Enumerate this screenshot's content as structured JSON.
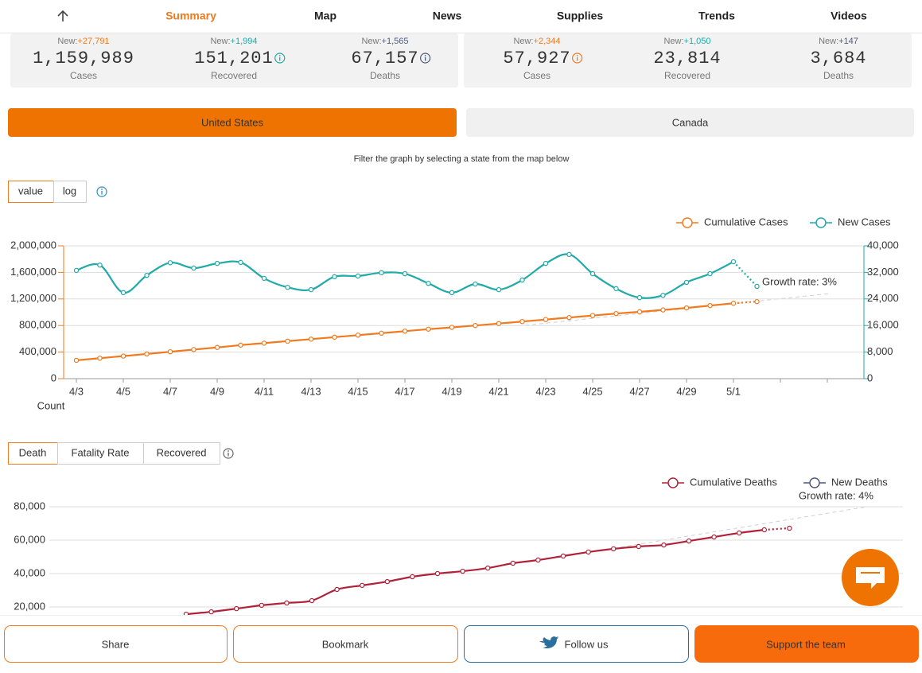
{
  "nav": {
    "items": [
      "Summary",
      "Map",
      "News",
      "Supplies",
      "Trends",
      "Videos"
    ],
    "active": 0
  },
  "new_prefix": "New:",
  "stats": [
    {
      "new": "+27,791",
      "value": "1,159,989",
      "label": "Cases",
      "color": "#f07a1f"
    },
    {
      "new": "+1,994",
      "value": "151,201",
      "label": "Recovered",
      "color": "#20aaa8"
    },
    {
      "new": "+1,565",
      "value": "67,157",
      "label": "Deaths",
      "color": "#4f5b7a"
    },
    {
      "new": "+2,344",
      "value": "57,927",
      "label": "Cases",
      "color": "#f07a1f"
    },
    {
      "new": "+1,050",
      "value": "23,814",
      "label": "Recovered",
      "color": "#20aaa8"
    },
    {
      "new": "+147",
      "value": "3,684",
      "label": "Deaths",
      "color": "#4f5b7a"
    }
  ],
  "tabs": {
    "items": [
      "United States",
      "Canada"
    ],
    "active": 0
  },
  "filter_note": "Filter the graph by selecting a state from the map below",
  "cases_chart": {
    "type": "line",
    "scale_options": [
      "value",
      "log"
    ],
    "log_scale": false,
    "y_label": "Count",
    "annotation": "Growth rate: 3%",
    "categories": [
      "4/3",
      null,
      "4/5",
      null,
      "4/7",
      null,
      "4/9",
      null,
      "4/11",
      null,
      "4/13",
      null,
      "4/15",
      null,
      "4/17",
      null,
      "4/19",
      null,
      "4/21",
      null,
      "4/23",
      null,
      "4/25",
      null,
      "4/27",
      null,
      "4/29",
      null,
      "5/1",
      null,
      null,
      null,
      null,
      null
    ],
    "series": [
      {
        "name": "Cumulative Cases",
        "color": "#f07a1f",
        "axis": "y",
        "values": [
          276000,
          308000,
          340000,
          372000,
          405000,
          438000,
          470000,
          505000,
          535000,
          565000,
          595000,
          625000,
          655000,
          685000,
          715000,
          745000,
          772000,
          800000,
          830000,
          860000,
          890000,
          920000,
          950000,
          980000,
          1006000,
          1035000,
          1065000,
          1100000,
          1135000,
          1159989,
          null,
          null,
          null,
          null
        ]
      },
      {
        "name": "New Cases",
        "color": "#20aaa8",
        "axis": "y2",
        "values": [
          32600,
          34200,
          25900,
          31100,
          34900,
          33300,
          34700,
          35000,
          30200,
          27500,
          26800,
          30700,
          30900,
          31900,
          31600,
          28700,
          25900,
          28500,
          26800,
          29700,
          34700,
          37400,
          31600,
          27100,
          24400,
          25100,
          29000,
          31600,
          35200,
          27800,
          null,
          null,
          null,
          null
        ]
      }
    ],
    "ylim": [
      0,
      2000000
    ],
    "yticks": [
      0,
      {
        "value": 400000,
        "label": "400,000"
      },
      {
        "value": 800000,
        "label": "800,000"
      },
      {
        "value": 1200000,
        "label": "1,200,000"
      },
      {
        "value": 1600000,
        "label": "1,600,000"
      },
      {
        "value": 2000000,
        "label": "2,000,000"
      }
    ],
    "y2lim": [
      0,
      40000
    ],
    "y2ticks": [
      0,
      {
        "value": 8000,
        "label": "8,000"
      },
      {
        "value": 16000,
        "label": "16,000"
      },
      {
        "value": 24000,
        "label": "24,000"
      },
      {
        "value": 32000,
        "label": "32,000"
      },
      {
        "value": 40000,
        "label": "40,000"
      }
    ],
    "grid": true
  },
  "deaths_chart": {
    "type": "line",
    "options": [
      "Death",
      "Fatality Rate",
      "Recovered"
    ],
    "selected": 0,
    "annotation": "Growth rate: 4%",
    "series": [
      {
        "name": "Cumulative Deaths",
        "color": "#b0213a",
        "values": [
          15700,
          17100,
          19000,
          21000,
          22400,
          23800,
          30500,
          32900,
          35200,
          38100,
          40000,
          41400,
          43300,
          46200,
          48100,
          50500,
          52900,
          54800,
          56200,
          57100,
          59500,
          61900,
          64300,
          66200,
          67157
        ]
      },
      {
        "name": "New Deaths",
        "color": "#4f5b7a",
        "values": [
          null,
          null,
          null,
          null,
          null,
          null,
          null,
          null,
          null,
          null,
          null,
          null,
          null,
          null,
          null,
          null,
          null,
          null,
          null,
          null,
          null,
          null,
          null,
          null,
          null
        ]
      }
    ],
    "ylim": [
      0,
      80000
    ],
    "yticks": [
      {
        "value": 20000,
        "label": "20,000"
      },
      {
        "value": 40000,
        "label": "40,000"
      },
      {
        "value": 60000,
        "label": "60,000"
      },
      {
        "value": 80000,
        "label": "80,000"
      }
    ],
    "grid": true
  },
  "footer": {
    "buttons": [
      "Share",
      "Bookmark",
      "Follow us",
      "Support the team"
    ]
  }
}
